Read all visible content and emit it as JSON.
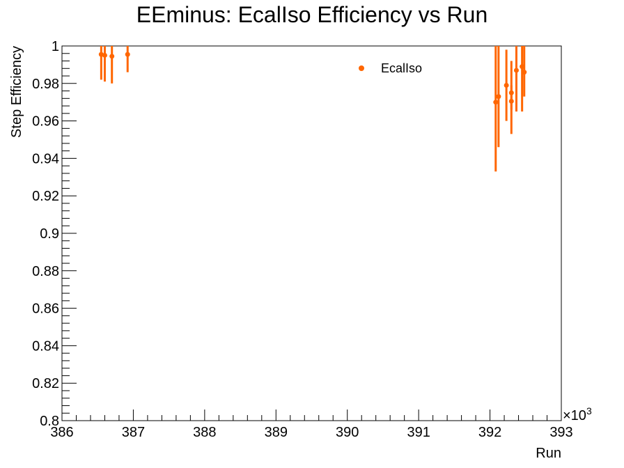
{
  "chart_data": {
    "type": "scatter",
    "title": "EEminus: EcalIso Efficiency vs Run",
    "xlabel": "Run",
    "ylabel": "Step Efficiency",
    "x_multiplier_label": "×10",
    "x_multiplier_exponent": "3",
    "xlim": [
      386,
      393
    ],
    "ylim": [
      0.8,
      1.0
    ],
    "x_ticks": [
      "386",
      "387",
      "388",
      "389",
      "390",
      "391",
      "392",
      "393"
    ],
    "y_ticks": [
      "0.8",
      "0.82",
      "0.84",
      "0.86",
      "0.88",
      "0.9",
      "0.92",
      "0.94",
      "0.96",
      "0.98",
      "1"
    ],
    "grid": false,
    "legend_position": "top-right",
    "series": [
      {
        "name": "EcalIso",
        "color": "#ff6600",
        "points": [
          {
            "x": 386.55,
            "y": 0.9955,
            "ylo": 0.982,
            "yhi": 1.0
          },
          {
            "x": 386.6,
            "y": 0.995,
            "ylo": 0.981,
            "yhi": 1.0
          },
          {
            "x": 386.7,
            "y": 0.9945,
            "ylo": 0.98,
            "yhi": 1.0
          },
          {
            "x": 386.92,
            "y": 0.9955,
            "ylo": 0.986,
            "yhi": 1.0
          },
          {
            "x": 392.08,
            "y": 0.97,
            "ylo": 0.933,
            "yhi": 1.0
          },
          {
            "x": 392.12,
            "y": 0.973,
            "ylo": 0.946,
            "yhi": 1.0
          },
          {
            "x": 392.23,
            "y": 0.979,
            "ylo": 0.96,
            "yhi": 0.998
          },
          {
            "x": 392.3,
            "y": 0.975,
            "ylo": 0.953,
            "yhi": 0.992
          },
          {
            "x": 392.3,
            "y": 0.9705,
            "ylo": 0.966,
            "yhi": 0.979
          },
          {
            "x": 392.37,
            "y": 0.987,
            "ylo": 0.965,
            "yhi": 1.0
          },
          {
            "x": 392.45,
            "y": 0.989,
            "ylo": 0.965,
            "yhi": 1.0
          },
          {
            "x": 392.48,
            "y": 0.986,
            "ylo": 0.973,
            "yhi": 1.0
          }
        ]
      }
    ]
  }
}
